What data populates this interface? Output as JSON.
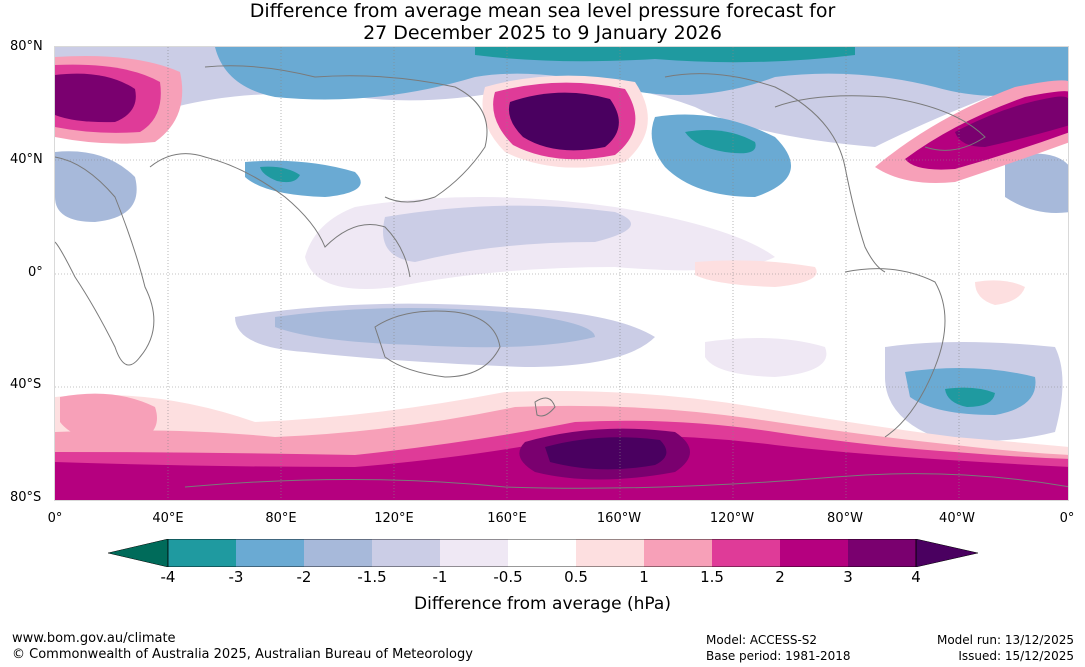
{
  "title": {
    "line1": "Difference from average mean sea level pressure forecast for",
    "line2": "27 December 2025 to 9 January 2026"
  },
  "map": {
    "lat_labels": [
      "80°N",
      "40°N",
      "0°",
      "40°S",
      "80°S"
    ],
    "lon_labels": [
      "0°",
      "40°E",
      "80°E",
      "120°E",
      "160°E",
      "160°W",
      "120°W",
      "80°W",
      "40°W",
      "0°"
    ],
    "colors": {
      "below_-4": "#006b5a",
      "-4_-3": "#1f9aa0",
      "-3_-2": "#6aaad3",
      "-2_-1.5": "#a7b9da",
      "-1.5_-1": "#cbcde6",
      "-1_-0.5": "#efe8f4",
      "-0.5_0.5": "#ffffff",
      "0.5_1": "#fddfe0",
      "1_1.5": "#f7a0b8",
      "1.5_2": "#df3b98",
      "2_3": "#b5007f",
      "3_4": "#7a006f",
      "above_4": "#4a0060"
    }
  },
  "colorbar": {
    "ticks": [
      "-4",
      "-3",
      "-2",
      "-1.5",
      "-1",
      "-0.5",
      "0.5",
      "1",
      "1.5",
      "2",
      "3",
      "4"
    ],
    "title": "Difference from average (hPa)"
  },
  "footer": {
    "url": "www.bom.gov.au/climate",
    "copyright": "© Commonwealth of Australia 2025, Australian Bureau of Meteorology",
    "model": "Model: ACCESS-S2",
    "base_period": "Base period: 1981-2018",
    "model_run": "Model run: 13/12/2025",
    "issued": "Issued: 15/12/2025"
  }
}
